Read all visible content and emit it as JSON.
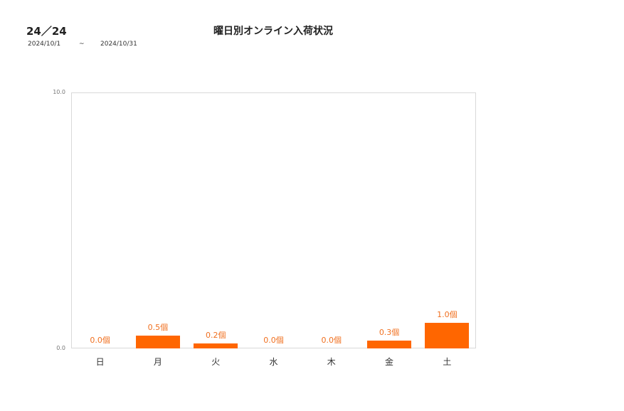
{
  "header": {
    "store": "24／24",
    "title": "曜日別オンライン入荷状況",
    "date_from": "2024/10/1",
    "date_sep": "~",
    "date_to": "2024/10/31"
  },
  "chart_data": {
    "type": "bar",
    "title": "曜日別オンライン入荷状況",
    "categories": [
      "日",
      "月",
      "火",
      "水",
      "木",
      "金",
      "土"
    ],
    "values": [
      0.0,
      0.5,
      0.2,
      0.0,
      0.0,
      0.3,
      1.0
    ],
    "value_labels": [
      "0.0個",
      "0.5個",
      "0.2個",
      "0.0個",
      "0.0個",
      "0.3個",
      "1.0個"
    ],
    "unit": "個",
    "xlabel": "",
    "ylabel": "",
    "ylim": [
      0,
      10
    ],
    "yticks": [
      "0.0",
      "10.0"
    ],
    "grid": false,
    "legend": "none",
    "bar_color": "#ff6600",
    "label_color": "#f07020"
  }
}
